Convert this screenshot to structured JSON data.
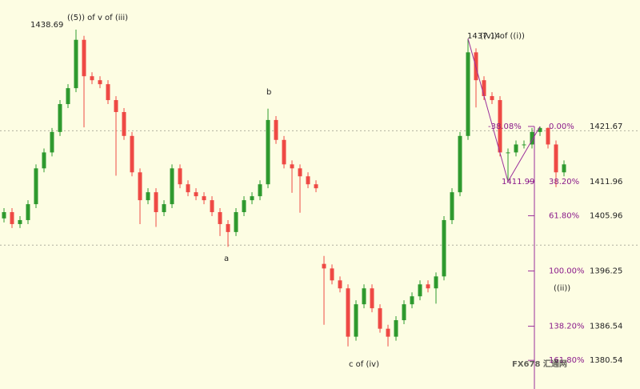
{
  "chart_data": {
    "type": "candlestick",
    "up_color": "#2f9a2f",
    "down_color": "#ee4a45",
    "fib_color": "#9b2f9b",
    "ylim": [
      1375.5,
      1443.9
    ],
    "grid": [
      1420.9,
      1400.8
    ],
    "candles": [
      [
        1405.5,
        1407.3,
        1404.8,
        1406.6
      ],
      [
        1406.6,
        1407.3,
        1403.8,
        1404.5
      ],
      [
        1404.5,
        1405.9,
        1403.8,
        1405.2
      ],
      [
        1405.2,
        1408.7,
        1404.5,
        1408.0
      ],
      [
        1408.0,
        1415.0,
        1407.3,
        1414.3
      ],
      [
        1414.3,
        1417.8,
        1413.6,
        1417.1
      ],
      [
        1417.1,
        1421.4,
        1416.4,
        1420.7
      ],
      [
        1420.7,
        1426.3,
        1420.0,
        1425.6
      ],
      [
        1425.6,
        1429.1,
        1424.9,
        1428.4
      ],
      [
        1428.4,
        1438.69,
        1427.7,
        1436.9
      ],
      [
        1436.9,
        1437.6,
        1421.5,
        1430.5
      ],
      [
        1430.5,
        1431.2,
        1429.1,
        1429.8
      ],
      [
        1429.8,
        1430.5,
        1428.4,
        1429.1
      ],
      [
        1429.1,
        1429.8,
        1425.6,
        1426.3
      ],
      [
        1426.3,
        1427.0,
        1413.0,
        1424.2
      ],
      [
        1424.2,
        1424.9,
        1419.3,
        1420.0
      ],
      [
        1420.0,
        1420.7,
        1412.9,
        1413.6
      ],
      [
        1413.6,
        1414.3,
        1404.5,
        1408.7
      ],
      [
        1408.7,
        1410.8,
        1408.0,
        1410.1
      ],
      [
        1410.1,
        1410.8,
        1404.0,
        1406.6
      ],
      [
        1406.6,
        1408.7,
        1405.9,
        1408.0
      ],
      [
        1408.0,
        1415.0,
        1407.3,
        1414.3
      ],
      [
        1414.3,
        1415.0,
        1410.8,
        1411.5
      ],
      [
        1411.5,
        1412.2,
        1409.4,
        1410.1
      ],
      [
        1410.1,
        1410.8,
        1408.7,
        1409.4
      ],
      [
        1409.4,
        1410.1,
        1408.0,
        1408.7
      ],
      [
        1408.7,
        1409.4,
        1405.9,
        1406.6
      ],
      [
        1406.6,
        1407.3,
        1402.4,
        1404.5
      ],
      [
        1404.5,
        1405.2,
        1400.5,
        1403.1
      ],
      [
        1403.1,
        1407.3,
        1402.4,
        1406.6
      ],
      [
        1406.6,
        1409.4,
        1405.9,
        1408.7
      ],
      [
        1408.7,
        1410.1,
        1408.0,
        1409.4
      ],
      [
        1409.4,
        1412.2,
        1408.7,
        1411.5
      ],
      [
        1411.5,
        1424.8,
        1410.8,
        1422.8
      ],
      [
        1422.8,
        1423.5,
        1418.6,
        1419.3
      ],
      [
        1419.3,
        1420.0,
        1414.3,
        1415.0
      ],
      [
        1415.0,
        1415.7,
        1410.0,
        1414.3
      ],
      [
        1414.3,
        1415.0,
        1406.5,
        1412.9
      ],
      [
        1412.9,
        1413.6,
        1410.8,
        1411.5
      ],
      [
        1411.5,
        1412.2,
        1410.1,
        1410.8
      ],
      [
        1397.5,
        1398.9,
        1386.8,
        1396.7
      ],
      [
        1396.7,
        1397.4,
        1393.9,
        1394.6
      ],
      [
        1394.6,
        1395.3,
        1392.5,
        1393.2
      ],
      [
        1393.2,
        1393.9,
        1383.0,
        1384.7
      ],
      [
        1384.7,
        1391.1,
        1384.0,
        1390.4
      ],
      [
        1390.4,
        1393.9,
        1389.7,
        1393.2
      ],
      [
        1393.2,
        1393.9,
        1389.0,
        1389.7
      ],
      [
        1389.7,
        1390.4,
        1385.4,
        1386.1
      ],
      [
        1386.1,
        1386.8,
        1383.0,
        1384.7
      ],
      [
        1384.7,
        1388.3,
        1384.0,
        1387.6
      ],
      [
        1387.6,
        1391.1,
        1386.9,
        1390.4
      ],
      [
        1390.4,
        1392.5,
        1389.7,
        1391.8
      ],
      [
        1391.8,
        1394.6,
        1391.1,
        1393.9
      ],
      [
        1393.9,
        1394.6,
        1392.5,
        1393.2
      ],
      [
        1393.2,
        1396.0,
        1390.5,
        1395.3
      ],
      [
        1395.3,
        1405.9,
        1394.6,
        1405.2
      ],
      [
        1405.2,
        1410.8,
        1404.5,
        1410.1
      ],
      [
        1410.1,
        1420.7,
        1409.4,
        1420.0
      ],
      [
        1420.0,
        1437.1,
        1419.3,
        1434.7
      ],
      [
        1434.7,
        1435.4,
        1425.0,
        1429.8
      ],
      [
        1429.8,
        1430.5,
        1426.3,
        1427.0
      ],
      [
        1427.0,
        1427.7,
        1425.6,
        1426.3
      ],
      [
        1426.3,
        1427.0,
        1416.4,
        1417.1
      ],
      [
        1417.1,
        1417.8,
        1411.99,
        1417.1
      ],
      [
        1417.1,
        1419.2,
        1416.4,
        1418.5
      ],
      [
        1418.5,
        1419.2,
        1417.8,
        1418.5
      ],
      [
        1418.5,
        1421.4,
        1417.8,
        1420.7
      ],
      [
        1420.7,
        1421.67,
        1420.0,
        1421.4
      ],
      [
        1421.4,
        1421.5,
        1417.8,
        1418.5
      ],
      [
        1418.5,
        1419.2,
        1411.0,
        1413.6
      ],
      [
        1413.6,
        1415.7,
        1412.9,
        1415.0
      ]
    ],
    "annotations": [
      "1438.69",
      "((5)) of v of (iii)",
      "b",
      "a",
      "c of (iv)",
      "1437.14",
      "((v)) of ((i))",
      "-38.08%",
      "1411.99",
      "((ii))"
    ],
    "fib_levels": [
      {
        "pct": "0.00%",
        "price": 1421.67
      },
      {
        "pct": "38.20%",
        "price": 1411.96
      },
      {
        "pct": "61.80%",
        "price": 1405.96
      },
      {
        "pct": "100.00%",
        "price": 1396.25
      },
      {
        "pct": "138.20%",
        "price": 1386.54
      },
      {
        "pct": "161.80%",
        "price": 1380.54
      }
    ],
    "watermark": "FX678 汇通网"
  }
}
